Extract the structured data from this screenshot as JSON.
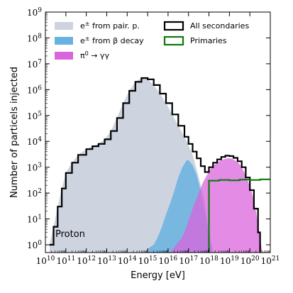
{
  "chart_data": {
    "type": "area",
    "xlabel": "Energy [eV]",
    "ylabel": "Number of particels injected",
    "xscale": "log",
    "yscale": "log",
    "xlim": [
      10000000000.0,
      1e+21
    ],
    "ylim": [
      0.5,
      1000000000.0
    ],
    "grid": false,
    "legend_position": "top",
    "x_ticks": [
      {
        "base": "10",
        "exp": "10"
      },
      {
        "base": "10",
        "exp": "11"
      },
      {
        "base": "10",
        "exp": "12"
      },
      {
        "base": "10",
        "exp": "13"
      },
      {
        "base": "10",
        "exp": "14"
      },
      {
        "base": "10",
        "exp": "15"
      },
      {
        "base": "10",
        "exp": "16"
      },
      {
        "base": "10",
        "exp": "17"
      },
      {
        "base": "10",
        "exp": "18"
      },
      {
        "base": "10",
        "exp": "19"
      },
      {
        "base": "10",
        "exp": "20"
      },
      {
        "base": "10",
        "exp": "21"
      }
    ],
    "y_ticks": [
      {
        "base": "10",
        "exp": "0"
      },
      {
        "base": "10",
        "exp": "1"
      },
      {
        "base": "10",
        "exp": "2"
      },
      {
        "base": "10",
        "exp": "3"
      },
      {
        "base": "10",
        "exp": "4"
      },
      {
        "base": "10",
        "exp": "5"
      },
      {
        "base": "10",
        "exp": "6"
      },
      {
        "base": "10",
        "exp": "7"
      },
      {
        "base": "10",
        "exp": "8"
      },
      {
        "base": "10",
        "exp": "9"
      }
    ],
    "annotation": "Proton",
    "series": [
      {
        "name": "e± from pair. p.",
        "legend": {
          "pre": "e",
          "sup": "±",
          "post": " from pair. p."
        },
        "style": "filled",
        "color": "#cdd3df",
        "points": [
          [
            10.2,
            1
          ],
          [
            10.4,
            5
          ],
          [
            10.6,
            30
          ],
          [
            10.8,
            150
          ],
          [
            11.0,
            600
          ],
          [
            11.3,
            1500
          ],
          [
            11.6,
            3000
          ],
          [
            12.0,
            5000
          ],
          [
            12.3,
            6500
          ],
          [
            12.6,
            8000
          ],
          [
            12.9,
            12000
          ],
          [
            13.2,
            25000
          ],
          [
            13.5,
            80000
          ],
          [
            13.8,
            300000
          ],
          [
            14.1,
            900000
          ],
          [
            14.4,
            2000000
          ],
          [
            14.7,
            2800000
          ],
          [
            15.0,
            2500000
          ],
          [
            15.3,
            1500000
          ],
          [
            15.6,
            700000
          ],
          [
            15.9,
            300000
          ],
          [
            16.2,
            110000
          ],
          [
            16.5,
            40000
          ],
          [
            16.8,
            15000
          ],
          [
            17.0,
            7000
          ],
          [
            17.2,
            3000
          ],
          [
            17.4,
            800
          ],
          [
            17.6,
            200
          ],
          [
            17.8,
            50
          ],
          [
            17.9,
            10
          ],
          [
            18.0,
            0.5
          ]
        ]
      },
      {
        "name": "e± from β decay",
        "legend": {
          "pre": "e",
          "sup": "±",
          "post": " from β decay"
        },
        "style": "filled",
        "color": "#67b2e0",
        "points": [
          [
            14.9,
            0.5
          ],
          [
            15.1,
            0.8
          ],
          [
            15.3,
            1
          ],
          [
            15.5,
            2
          ],
          [
            15.7,
            5
          ],
          [
            15.9,
            15
          ],
          [
            16.1,
            40
          ],
          [
            16.3,
            120
          ],
          [
            16.5,
            400
          ],
          [
            16.7,
            1000
          ],
          [
            16.9,
            1800
          ],
          [
            17.0,
            1900
          ],
          [
            17.2,
            1200
          ],
          [
            17.4,
            500
          ],
          [
            17.6,
            120
          ],
          [
            17.8,
            20
          ],
          [
            18.0,
            3
          ],
          [
            18.2,
            0.5
          ]
        ]
      },
      {
        "name": "π0 → γγ",
        "legend": {
          "pre": "π",
          "sup": "0",
          "post": " → γγ"
        },
        "style": "filled",
        "color": "#da64dc",
        "points": [
          [
            16.1,
            0.5
          ],
          [
            16.4,
            1
          ],
          [
            16.7,
            2
          ],
          [
            16.9,
            5
          ],
          [
            17.1,
            15
          ],
          [
            17.3,
            40
          ],
          [
            17.5,
            100
          ],
          [
            17.7,
            250
          ],
          [
            17.9,
            500
          ],
          [
            18.1,
            900
          ],
          [
            18.3,
            1300
          ],
          [
            18.5,
            1700
          ],
          [
            18.7,
            2000
          ],
          [
            18.9,
            2200
          ],
          [
            19.1,
            2200
          ],
          [
            19.3,
            1800
          ],
          [
            19.5,
            1300
          ],
          [
            19.7,
            700
          ],
          [
            19.9,
            300
          ],
          [
            20.1,
            100
          ],
          [
            20.3,
            20
          ],
          [
            20.5,
            2
          ],
          [
            20.6,
            0.5
          ]
        ]
      },
      {
        "name": "All secondaries",
        "legend": {
          "pre": "All secondaries",
          "sup": "",
          "post": ""
        },
        "style": "step",
        "color": "#000000",
        "points": [
          [
            10.2,
            1
          ],
          [
            10.4,
            5
          ],
          [
            10.6,
            30
          ],
          [
            10.8,
            150
          ],
          [
            11.0,
            600
          ],
          [
            11.3,
            1500
          ],
          [
            11.6,
            3000
          ],
          [
            12.0,
            5000
          ],
          [
            12.3,
            6500
          ],
          [
            12.6,
            8000
          ],
          [
            12.9,
            12000
          ],
          [
            13.2,
            25000
          ],
          [
            13.5,
            80000
          ],
          [
            13.8,
            300000
          ],
          [
            14.1,
            900000
          ],
          [
            14.4,
            2000000
          ],
          [
            14.7,
            2800000
          ],
          [
            15.0,
            2500000
          ],
          [
            15.3,
            1500000
          ],
          [
            15.6,
            700000
          ],
          [
            15.9,
            300000
          ],
          [
            16.2,
            110000
          ],
          [
            16.5,
            40000
          ],
          [
            16.8,
            15000
          ],
          [
            17.0,
            8000
          ],
          [
            17.2,
            4000
          ],
          [
            17.4,
            2200
          ],
          [
            17.6,
            1100
          ],
          [
            17.8,
            650
          ],
          [
            18.0,
            1000
          ],
          [
            18.2,
            1500
          ],
          [
            18.4,
            2000
          ],
          [
            18.6,
            2500
          ],
          [
            18.8,
            2800
          ],
          [
            19.0,
            2700
          ],
          [
            19.2,
            2300
          ],
          [
            19.4,
            1700
          ],
          [
            19.6,
            1000
          ],
          [
            19.8,
            400
          ],
          [
            20.0,
            130
          ],
          [
            20.2,
            25
          ],
          [
            20.4,
            3
          ],
          [
            20.5,
            0.5
          ]
        ]
      },
      {
        "name": "Primaries",
        "legend": {
          "pre": "Primaries",
          "sup": "",
          "post": ""
        },
        "style": "step",
        "color": "#0e7a0e",
        "points": [
          [
            18.0,
            0.5
          ],
          [
            18.0,
            300
          ],
          [
            18.5,
            320
          ],
          [
            19.0,
            310
          ],
          [
            19.5,
            330
          ],
          [
            20.0,
            320
          ],
          [
            20.5,
            340
          ],
          [
            21.0,
            340
          ]
        ]
      }
    ]
  }
}
